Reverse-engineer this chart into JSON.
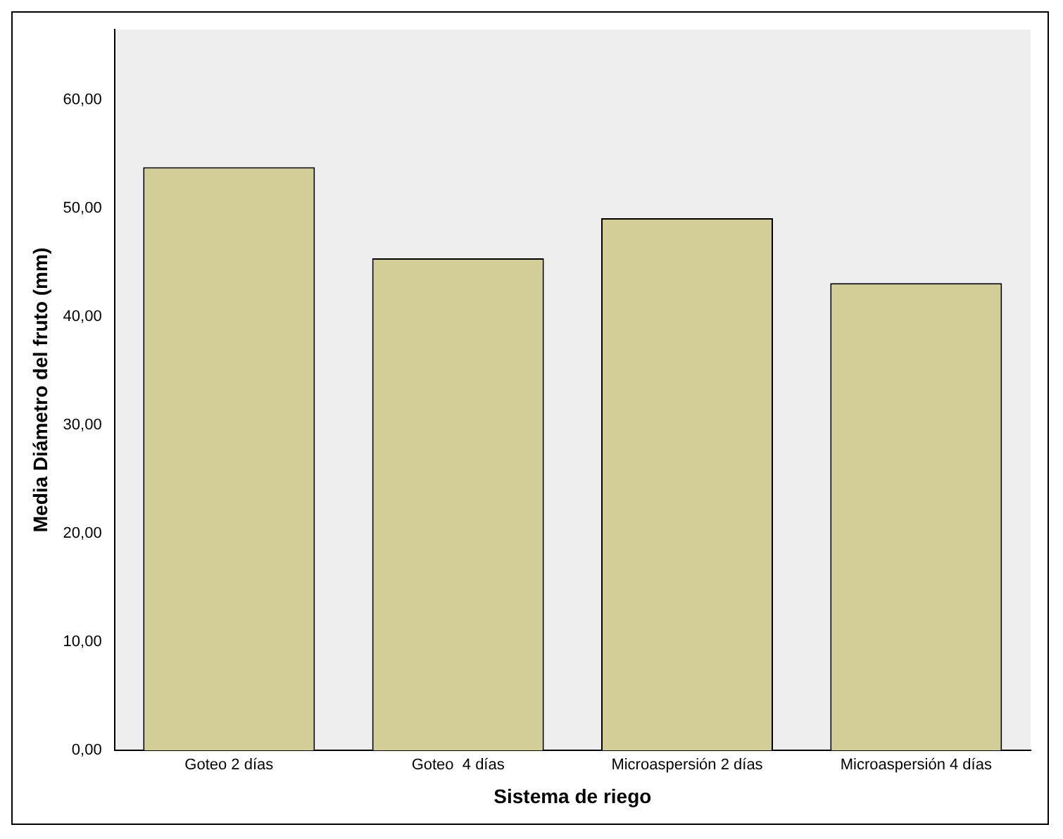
{
  "chart_data": {
    "type": "bar",
    "xlabel": "Sistema de riego",
    "ylabel": "Media Diámetro del fruto (mm)",
    "categories": [
      "Goteo 2 días",
      "Goteo  4 días",
      "Microaspersión 2 días",
      "Microaspersión 4 días"
    ],
    "values": [
      53.8,
      45.4,
      49.1,
      43.1
    ],
    "color": "#d3ce97",
    "ylim": [
      0,
      66.5
    ],
    "yticks": [
      {
        "value": 0,
        "label": "0,00"
      },
      {
        "value": 10,
        "label": "10,00"
      },
      {
        "value": 20,
        "label": "20,00"
      },
      {
        "value": 30,
        "label": "30,00"
      },
      {
        "value": 40,
        "label": "40,00"
      },
      {
        "value": 50,
        "label": "50,00"
      },
      {
        "value": 60,
        "label": "60,00"
      }
    ],
    "grid": false,
    "legend": false
  }
}
